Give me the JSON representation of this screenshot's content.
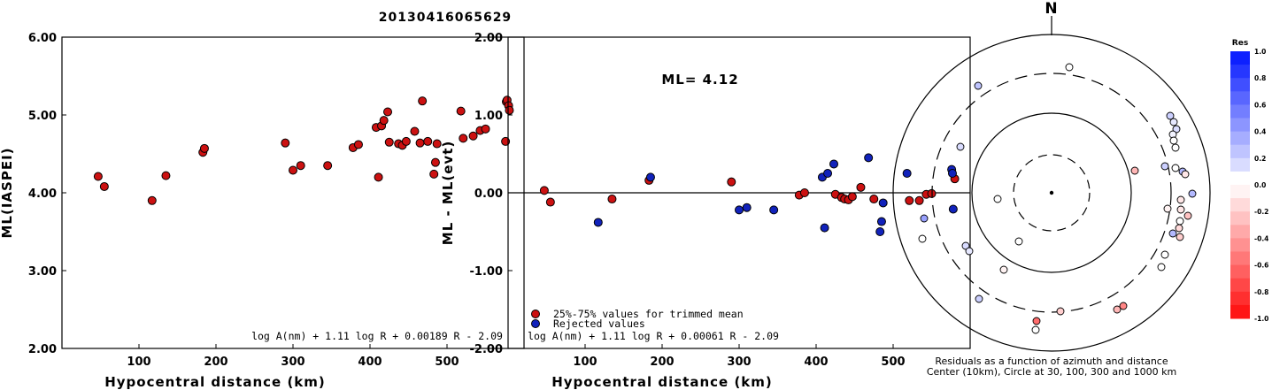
{
  "title": "20130416065629",
  "chart_data": [
    {
      "type": "scatter",
      "panel": "left",
      "xlabel": "Hypocentral distance (km)",
      "ylabel": "ML(IASPEI)",
      "xlim": [
        0,
        600
      ],
      "ylim": [
        2.0,
        6.0
      ],
      "xticks": [
        "100",
        "200",
        "300",
        "400",
        "500"
      ],
      "yticks": [
        "2.00",
        "3.00",
        "4.00",
        "5.00",
        "6.00"
      ],
      "formula": "log A(nm) + 1.11 log R + 0.00189 R - 2.09",
      "point_color": "#cc1111",
      "points": [
        [
          47,
          4.21
        ],
        [
          55,
          4.08
        ],
        [
          117,
          3.9
        ],
        [
          135,
          4.22
        ],
        [
          183,
          4.52
        ],
        [
          185,
          4.57
        ],
        [
          290,
          4.64
        ],
        [
          300,
          4.29
        ],
        [
          310,
          4.35
        ],
        [
          345,
          4.35
        ],
        [
          378,
          4.58
        ],
        [
          385,
          4.62
        ],
        [
          408,
          4.84
        ],
        [
          411,
          4.2
        ],
        [
          415,
          4.86
        ],
        [
          418,
          4.93
        ],
        [
          423,
          5.04
        ],
        [
          425,
          4.65
        ],
        [
          437,
          4.63
        ],
        [
          442,
          4.61
        ],
        [
          447,
          4.66
        ],
        [
          458,
          4.79
        ],
        [
          465,
          4.64
        ],
        [
          468,
          5.18
        ],
        [
          475,
          4.66
        ],
        [
          483,
          4.24
        ],
        [
          485,
          4.39
        ],
        [
          487,
          4.63
        ],
        [
          518,
          5.05
        ],
        [
          521,
          4.7
        ],
        [
          534,
          4.73
        ],
        [
          543,
          4.8
        ],
        [
          550,
          4.82
        ],
        [
          576,
          4.66
        ],
        [
          577,
          5.17
        ],
        [
          578,
          5.19
        ],
        [
          580,
          5.12
        ],
        [
          581,
          5.06
        ]
      ]
    },
    {
      "type": "scatter",
      "panel": "middle",
      "xlabel": "Hypocentral distance (km)",
      "ylabel": "ML - ML(evt)",
      "xlim": [
        0,
        600
      ],
      "ylim": [
        -2.0,
        2.0
      ],
      "xticks": [
        "100",
        "200",
        "300",
        "400",
        "500"
      ],
      "yticks": [
        "-2.00",
        "-1.00",
        "0.00",
        "1.00",
        "2.00"
      ],
      "annotation": "ML= 4.12",
      "formula": "log A(nm) + 1.11 log R + 0.00061 R - 2.09",
      "legend": [
        "25%-75% values for trimmed mean",
        "Rejected values"
      ],
      "series": [
        {
          "name": "25%-75% values for trimmed mean",
          "color": "#cc1111",
          "points": [
            [
              47,
              0.03
            ],
            [
              55,
              -0.12
            ],
            [
              135,
              -0.08
            ],
            [
              183,
              0.16
            ],
            [
              290,
              0.14
            ],
            [
              378,
              -0.03
            ],
            [
              385,
              0.0
            ],
            [
              425,
              -0.02
            ],
            [
              433,
              -0.06
            ],
            [
              437,
              -0.08
            ],
            [
              442,
              -0.09
            ],
            [
              447,
              -0.05
            ],
            [
              458,
              0.07
            ],
            [
              475,
              -0.08
            ],
            [
              521,
              -0.1
            ],
            [
              534,
              -0.1
            ],
            [
              543,
              -0.02
            ],
            [
              550,
              -0.01
            ],
            [
              580,
              0.18
            ]
          ]
        },
        {
          "name": "Rejected values",
          "color": "#1122bb",
          "points": [
            [
              117,
              -0.38
            ],
            [
              185,
              0.2
            ],
            [
              300,
              -0.22
            ],
            [
              310,
              -0.19
            ],
            [
              345,
              -0.22
            ],
            [
              408,
              0.2
            ],
            [
              411,
              -0.45
            ],
            [
              415,
              0.25
            ],
            [
              423,
              0.37
            ],
            [
              468,
              0.45
            ],
            [
              483,
              -0.5
            ],
            [
              485,
              -0.37
            ],
            [
              487,
              -0.13
            ],
            [
              518,
              0.25
            ],
            [
              576,
              0.3
            ],
            [
              577,
              0.25
            ],
            [
              578,
              -0.21
            ]
          ]
        }
      ]
    },
    {
      "type": "scatter",
      "panel": "right-polar",
      "north_label": "N",
      "caption_line1": "Residuals as a function of azimuth and distance",
      "caption_line2": "Center (10km), Circle at 30, 100, 300 and 1000 km",
      "circles_km": [
        30,
        100,
        300,
        1000
      ],
      "colorbar_title": "Res",
      "colorbar_ticks": [
        "1.0",
        "0.8",
        "0.6",
        "0.4",
        "0.2",
        "0.0",
        "-0.2",
        "-0.4",
        "-0.6",
        "-0.8",
        "-1.0"
      ],
      "station_residuals": [
        [
          1208,
          76,
          0.0
        ],
        [
          1105,
          97,
          0.25
        ],
        [
          1085,
          166,
          0.15
        ],
        [
          1282,
          193,
          -0.3
        ],
        [
          1322,
          131,
          0.2
        ],
        [
          1326,
          138,
          0.1
        ],
        [
          1329,
          146,
          0.15
        ],
        [
          1325,
          152,
          0.05
        ],
        [
          1326,
          159,
          0.0
        ],
        [
          1328,
          167,
          0.0
        ],
        [
          1316,
          188,
          0.2
        ],
        [
          1328,
          190,
          0.0
        ],
        [
          1336,
          194,
          0.3
        ],
        [
          1339,
          197,
          -0.1
        ],
        [
          1347,
          219,
          0.3
        ],
        [
          1334,
          226,
          -0.1
        ],
        [
          1319,
          236,
          -0.05
        ],
        [
          1334,
          237,
          -0.1
        ],
        [
          1342,
          244,
          -0.25
        ],
        [
          1333,
          250,
          0.0
        ],
        [
          1332,
          258,
          -0.15
        ],
        [
          1325,
          264,
          0.3
        ],
        [
          1333,
          268,
          -0.2
        ],
        [
          1316,
          288,
          0.0
        ],
        [
          1312,
          302,
          0.0
        ],
        [
          1127,
          225,
          0.0
        ],
        [
          1044,
          247,
          0.4
        ],
        [
          1042,
          270,
          0.0
        ],
        [
          1091,
          278,
          0.15
        ],
        [
          1095,
          284,
          0.1
        ],
        [
          1151,
          273,
          0.0
        ],
        [
          1134,
          305,
          -0.05
        ],
        [
          1106,
          338,
          0.2
        ],
        [
          1198,
          352,
          -0.2
        ],
        [
          1171,
          363,
          -0.6
        ],
        [
          1170,
          373,
          0.0
        ],
        [
          1262,
          350,
          -0.3
        ],
        [
          1269,
          346,
          -0.5
        ]
      ]
    }
  ]
}
